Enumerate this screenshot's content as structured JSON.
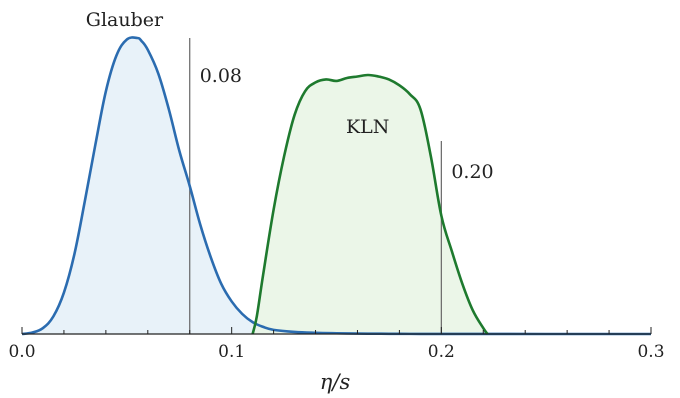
{
  "chart_data": {
    "type": "area",
    "title": "",
    "xlabel": "η/s",
    "ylabel": "",
    "xlim": [
      0.0,
      0.3
    ],
    "ylim": [
      0,
      1.0
    ],
    "grid": false,
    "xticks": [
      0.0,
      0.1,
      0.2,
      0.3
    ],
    "xtick_labels": [
      "0.0",
      "0.1",
      "0.2",
      "0.3"
    ],
    "series": [
      {
        "name": "Glauber",
        "color": "#2b6cb0",
        "fill": "#e6f1f8",
        "x": [
          0.0,
          0.005,
          0.01,
          0.015,
          0.02,
          0.025,
          0.03,
          0.035,
          0.04,
          0.045,
          0.05,
          0.055,
          0.057,
          0.06,
          0.065,
          0.07,
          0.075,
          0.08,
          0.085,
          0.09,
          0.095,
          0.1,
          0.105,
          0.11,
          0.115,
          0.12,
          0.13,
          0.14,
          0.15,
          0.16,
          0.17,
          0.18,
          0.19,
          0.2,
          0.3
        ],
        "values": [
          0.0,
          0.005,
          0.02,
          0.06,
          0.14,
          0.27,
          0.45,
          0.64,
          0.82,
          0.94,
          0.995,
          1.0,
          0.99,
          0.96,
          0.88,
          0.76,
          0.62,
          0.5,
          0.37,
          0.26,
          0.17,
          0.11,
          0.068,
          0.04,
          0.024,
          0.014,
          0.007,
          0.004,
          0.0025,
          0.0015,
          0.001,
          0.0006,
          0.0003,
          0.0001,
          0.0
        ]
      },
      {
        "name": "KLN",
        "color": "#1e7a2e",
        "fill": "#e9f5e6",
        "x": [
          0.11,
          0.112,
          0.115,
          0.12,
          0.125,
          0.13,
          0.135,
          0.14,
          0.145,
          0.15,
          0.155,
          0.16,
          0.165,
          0.17,
          0.175,
          0.18,
          0.185,
          0.19,
          0.195,
          0.2,
          0.205,
          0.21,
          0.215,
          0.22,
          0.222
        ],
        "values": [
          0.0,
          0.06,
          0.2,
          0.42,
          0.6,
          0.74,
          0.82,
          0.85,
          0.86,
          0.855,
          0.865,
          0.87,
          0.875,
          0.87,
          0.86,
          0.84,
          0.81,
          0.76,
          0.6,
          0.4,
          0.28,
          0.17,
          0.08,
          0.02,
          0.0
        ]
      }
    ],
    "vlines": [
      {
        "x": 0.08,
        "label": "0.08"
      },
      {
        "x": 0.2,
        "label": "0.20"
      }
    ],
    "annotations": [
      {
        "text": "Glauber",
        "x": 0.046,
        "y": 1.05
      },
      {
        "text": "KLN",
        "x": 0.162,
        "y": 0.9
      }
    ]
  }
}
